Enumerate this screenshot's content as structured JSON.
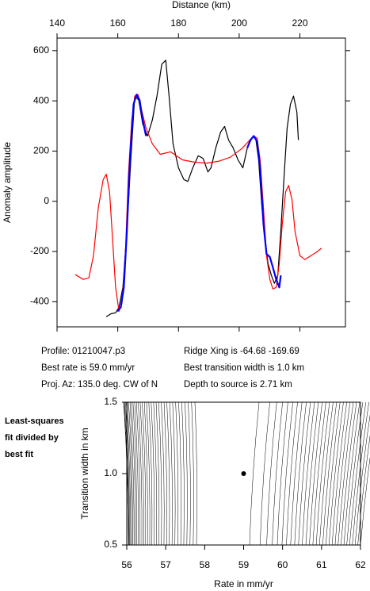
{
  "chart_data": [
    {
      "type": "line",
      "xlabel": "Distance (km)",
      "ylabel": "Anomaly amplitude",
      "xlim": [
        140,
        235
      ],
      "xticks": [
        140,
        160,
        180,
        200,
        220
      ],
      "ylim": [
        -500,
        650
      ],
      "yticks": [
        -400,
        -200,
        0,
        200,
        400,
        600
      ],
      "series": [
        {
          "color": "#000000",
          "x": [
            156.2,
            157.8,
            159.3,
            160.4,
            161.7,
            163.0,
            164.3,
            165.6,
            166.9,
            168.2,
            169.8,
            171.4,
            172.9,
            174.5,
            175.8,
            176.9,
            178.2,
            180.0,
            181.8,
            183.1,
            184.7,
            186.5,
            188.1,
            189.7,
            190.7,
            192.3,
            193.9,
            195.2,
            196.5,
            198.0,
            199.6,
            201.2,
            202.7,
            204.3,
            205.4,
            206.4,
            207.5,
            208.5,
            209.5,
            210.6,
            211.6,
            212.7,
            213.7,
            214.8,
            215.8,
            216.9,
            217.9,
            219.0,
            219.5
          ],
          "values": [
            -460,
            -448,
            -444,
            -422,
            -343,
            -121,
            165,
            419,
            403,
            308,
            260,
            324,
            419,
            546,
            562,
            419,
            229,
            133,
            86,
            79,
            133,
            181,
            171,
            117,
            133,
            213,
            276,
            298,
            244,
            213,
            165,
            133,
            213,
            254,
            254,
            165,
            -25,
            -152,
            -248,
            -295,
            -327,
            -295,
            -121,
            102,
            292,
            387,
            419,
            356,
            244
          ]
        },
        {
          "color": "#ff0000",
          "x": [
            146.0,
            148.6,
            150.5,
            152.0,
            153.6,
            155.2,
            156.2,
            157.3,
            158.3,
            159.3,
            160.4,
            161.4,
            162.5,
            163.5,
            164.6,
            165.6,
            166.7,
            167.7,
            169.3,
            171.4,
            174.0,
            177.4,
            181.3,
            185.2,
            189.2,
            193.1,
            197.0,
            200.9,
            203.5,
            204.8,
            205.9,
            206.9,
            208.0,
            209.0,
            210.1,
            211.1,
            212.2,
            213.2,
            214.2,
            215.3,
            216.3,
            217.4,
            218.4,
            220.0,
            221.6,
            223.7,
            225.8,
            227.1
          ],
          "values": [
            -292,
            -311,
            -305,
            -216,
            -25,
            86,
            108,
            38,
            -152,
            -343,
            -438,
            -406,
            -216,
            102,
            324,
            419,
            425,
            371,
            292,
            229,
            187,
            197,
            165,
            156,
            152,
            159,
            175,
            210,
            244,
            260,
            251,
            165,
            -25,
            -216,
            -311,
            -349,
            -343,
            -248,
            -89,
            38,
            63,
            6,
            -121,
            -216,
            -232,
            -216,
            -200,
            -187
          ]
        },
        {
          "color": "#0000ff",
          "x": [
            159.9,
            161.0,
            162.0,
            163.0,
            164.0,
            165.2,
            166.2,
            167.2,
            168.2,
            169.3,
            null,
            202.7,
            203.7,
            204.8,
            205.9,
            206.9,
            208.0,
            209.0,
            210.1,
            211.1,
            212.2,
            213.2,
            213.7
          ],
          "values": [
            -438,
            -422,
            -343,
            -121,
            165,
            387,
            425,
            403,
            324,
            260,
            null,
            213,
            244,
            260,
            238,
            133,
            -89,
            -210,
            -222,
            -263,
            -311,
            -343,
            -295
          ]
        }
      ],
      "annotations": [
        "Profile: 01210047.p3",
        "Best rate is 59.0 mm/yr",
        "Proj. Az: 135.0 deg. CW of N",
        "Ridge Xing is -64.68 -169.69",
        "Best transition width is 1.0 km",
        "Depth to source is   2.71 km"
      ]
    },
    {
      "type": "contour",
      "title": [
        "Least-squares",
        "fit divided by",
        "best fit"
      ],
      "xlabel": "Rate in mm/yr",
      "ylabel": "Transition width in km",
      "xlim": [
        56,
        62
      ],
      "xticks": [
        56,
        57,
        58,
        59,
        60,
        61,
        62
      ],
      "ylim": [
        0.5,
        1.5
      ],
      "yticks": [
        {
          "value": 0.5,
          "label": "0.5"
        },
        {
          "value": 1.0,
          "label": "1.0"
        },
        {
          "value": 1.5,
          "label": "1.5"
        }
      ],
      "x": [
        59
      ],
      "values": [
        1.0
      ]
    }
  ]
}
